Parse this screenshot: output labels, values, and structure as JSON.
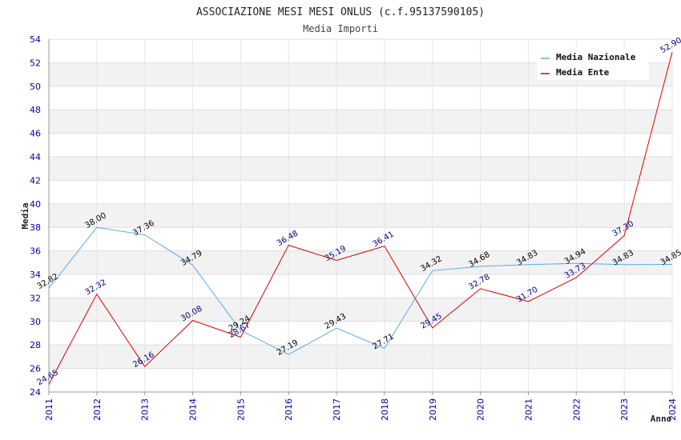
{
  "chart_data": {
    "type": "line",
    "title": "ASSOCIAZIONE MESI MESI ONLUS (c.f.95137590105)",
    "subtitle": "Media Importi",
    "xlabel": "Anno",
    "ylabel": "Media",
    "ylim": [
      24,
      54
    ],
    "yticks": [
      "24",
      "26",
      "28",
      "30",
      "32",
      "34",
      "36",
      "38",
      "40",
      "42",
      "44",
      "46",
      "48",
      "50",
      "52",
      "54"
    ],
    "grid": true,
    "legend_position": "top-right",
    "x": [
      "2011",
      "2012",
      "2013",
      "2014",
      "2015",
      "2016",
      "2017",
      "2018",
      "2019",
      "2020",
      "2021",
      "2022",
      "2023",
      "2024"
    ],
    "series": [
      {
        "name": "Media Nazionale",
        "color": "#5da9e9",
        "label_color": "#000000",
        "values": [
          32.82,
          38.0,
          37.36,
          34.79,
          29.24,
          27.19,
          29.43,
          27.71,
          34.32,
          34.68,
          34.83,
          34.94,
          34.83,
          34.85
        ],
        "labels": [
          "32.82",
          "38.00",
          "37.36",
          "34.79",
          "29.24",
          "27.19",
          "29.43",
          "27.71",
          "34.32",
          "34.68",
          "34.83",
          "34.94",
          "34.83",
          "34.85"
        ]
      },
      {
        "name": "Media Ente",
        "color": "#dd0000",
        "label_color": "#000080",
        "values": [
          24.65,
          32.32,
          26.16,
          30.08,
          28.67,
          36.48,
          35.19,
          36.41,
          29.45,
          32.78,
          31.7,
          33.73,
          37.3,
          52.9
        ],
        "labels": [
          "24.65",
          "32.32",
          "26.16",
          "30.08",
          "28.67",
          "36.48",
          "35.19",
          "36.41",
          "29.45",
          "32.78",
          "31.70",
          "33.73",
          "37.30",
          "52.90"
        ]
      }
    ]
  }
}
